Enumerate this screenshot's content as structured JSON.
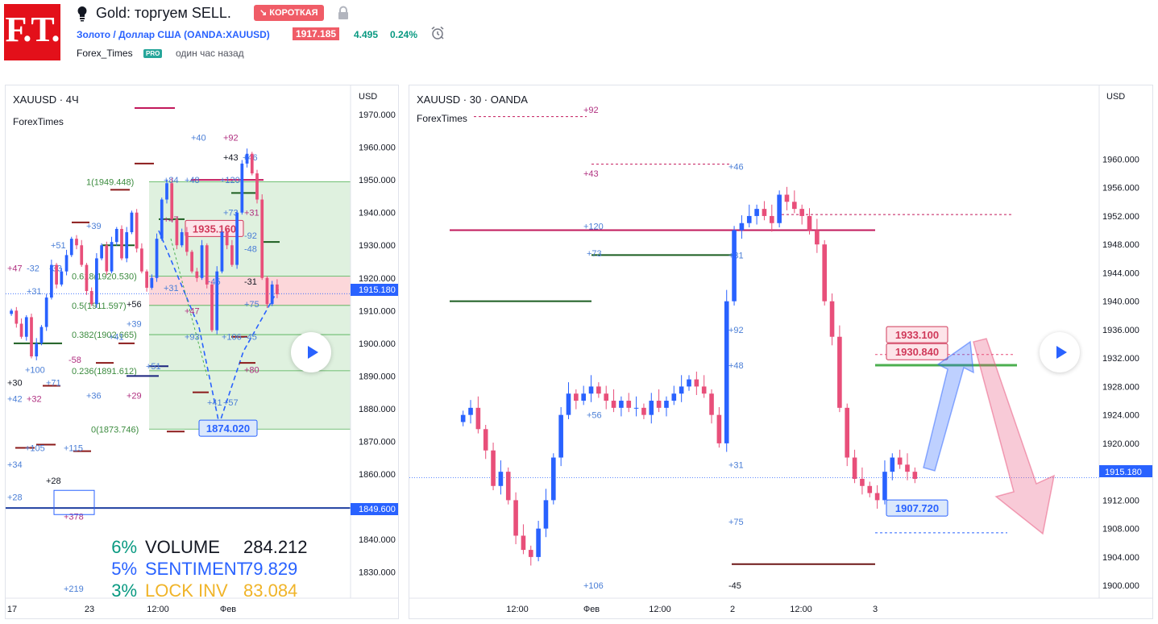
{
  "header": {
    "logo": "F.T.",
    "bulb_icon": "lightbulb-icon",
    "title": "Gold: торгуем SELL.",
    "direction_badge": "↘ КОРОТКАЯ",
    "instrument": "Золото / Доллар США (OANDA:XAUUSD)",
    "price": "1917.185",
    "change": "4.495",
    "change_pct": "0.24%",
    "author": "Forex_Times",
    "author_badge": "PRO",
    "time_ago": "один час назад"
  },
  "colors": {
    "accent": "#2962ff",
    "up": "#2962ff",
    "down": "#e84f7a",
    "brand": "#e3101a"
  },
  "left_chart": {
    "title": "XAUUSD · 4Ч",
    "source": "ForexTimes",
    "currency": "USD",
    "last_price": "1915.180",
    "line_price": "1849.600",
    "pct_labels": [
      "6%",
      "5%",
      "3%"
    ],
    "stat_labels": [
      "VOLUME",
      "SENTIMENT",
      "LOCK INV"
    ],
    "stat_values": [
      "284.212",
      "79.829",
      "83.084"
    ]
  },
  "right_chart": {
    "title": "XAUUSD · 30 · OANDA",
    "source": "ForexTimes",
    "currency": "USD",
    "last_price": "1915.180"
  },
  "chart_data": [
    {
      "type": "candlestick",
      "title": "XAUUSD · 4Ч",
      "y_ticks": [
        "1970.000",
        "1960.000",
        "1950.000",
        "1940.000",
        "1930.000",
        "1920.000",
        "1910.000",
        "1900.000",
        "1890.000",
        "1880.000",
        "1870.000",
        "1860.000",
        "1850.000",
        "1840.000",
        "1830.000"
      ],
      "x_ticks": [
        "17",
        "23",
        "12:00",
        "Фев"
      ],
      "ylim": [
        1822,
        1972
      ],
      "closes": [
        1910,
        1906,
        1902,
        1908,
        1896,
        1900,
        1905,
        1914,
        1924,
        1918,
        1922,
        1927,
        1932,
        1930,
        1924,
        1916,
        1912,
        1926,
        1930,
        1922,
        1931,
        1935,
        1926,
        1934,
        1940,
        1929,
        1922,
        1917,
        1920,
        1932,
        1944,
        1949,
        1938,
        1930,
        1934,
        1928,
        1922,
        1920,
        1930,
        1918,
        1904,
        1922,
        1934,
        1930,
        1924,
        1940,
        1955,
        1958,
        1952,
        1944,
        1920,
        1912,
        1918,
        1915
      ],
      "fib_levels": [
        {
          "label": "1(1949.448)",
          "value": 1949.448
        },
        {
          "label": "0.618(1920.530)",
          "value": 1920.53
        },
        {
          "label": "0.5(1911.597)",
          "value": 1911.597
        },
        {
          "label": "0.382(1902.665)",
          "value": 1902.665
        },
        {
          "label": "0.236(1891.612)",
          "value": 1891.612
        },
        {
          "label": "0(1873.746)",
          "value": 1873.746
        }
      ],
      "annotations": [
        "1935.160",
        "1874.020"
      ],
      "level_labels": [
        "+47",
        "-32",
        "-33",
        "+51",
        "+31",
        "-58",
        "+100",
        "+30",
        "+71",
        "+42",
        "+32",
        "+105",
        "+115",
        "+34",
        "+28",
        "+378",
        "+219",
        "+84",
        "+48",
        "+40",
        "+92",
        "+43",
        "+46",
        "+120",
        "+73",
        "+31",
        "-92",
        "-48",
        "-31",
        "+75",
        "+47",
        "+45",
        "+93",
        "+106",
        "-45",
        "+80",
        "+41",
        "+57",
        "+51",
        "+39",
        "+29",
        "+36",
        "+56",
        "+39",
        "+41",
        "+47",
        "+31",
        "+28"
      ],
      "volume_pct": "6%",
      "sentiment_pct": "5%",
      "lock_pct": "3%"
    },
    {
      "type": "candlestick",
      "title": "XAUUSD · 30 · OANDA",
      "y_ticks": [
        "1960.000",
        "1956.000",
        "1952.000",
        "1948.000",
        "1944.000",
        "1940.000",
        "1936.000",
        "1932.000",
        "1928.000",
        "1924.000",
        "1920.000",
        "1916.000",
        "1912.000",
        "1908.000",
        "1904.000",
        "1900.000"
      ],
      "x_ticks": [
        "12:00",
        "Фев",
        "12:00",
        "2",
        "12:00",
        "3"
      ],
      "ylim": [
        1898.2,
        1967.2
      ],
      "closes": [
        1924,
        1925,
        1922,
        1919,
        1914,
        1916,
        1912,
        1907,
        1905,
        1904,
        1908,
        1912,
        1918,
        1924,
        1927,
        1926,
        1927,
        1928,
        1927,
        1926,
        1925,
        1926,
        1925,
        1925,
        1924,
        1926,
        1925,
        1926,
        1927,
        1928,
        1929,
        1928,
        1927,
        1924,
        1920,
        1940,
        1950,
        1951,
        1952,
        1953,
        1952,
        1951,
        1955,
        1954,
        1953,
        1952,
        1950,
        1948,
        1940,
        1935,
        1925,
        1918,
        1915,
        1914,
        1913,
        1912,
        1916,
        1918,
        1917,
        1916,
        1915
      ],
      "annotations": [
        "1933.100",
        "1930.840",
        "1907.720"
      ],
      "level_labels": [
        "+92",
        "+43",
        "+46",
        "+120",
        "+73",
        "+31",
        "+92",
        "+48",
        "+56",
        "+31",
        "+75",
        "+106",
        "-45"
      ]
    }
  ]
}
